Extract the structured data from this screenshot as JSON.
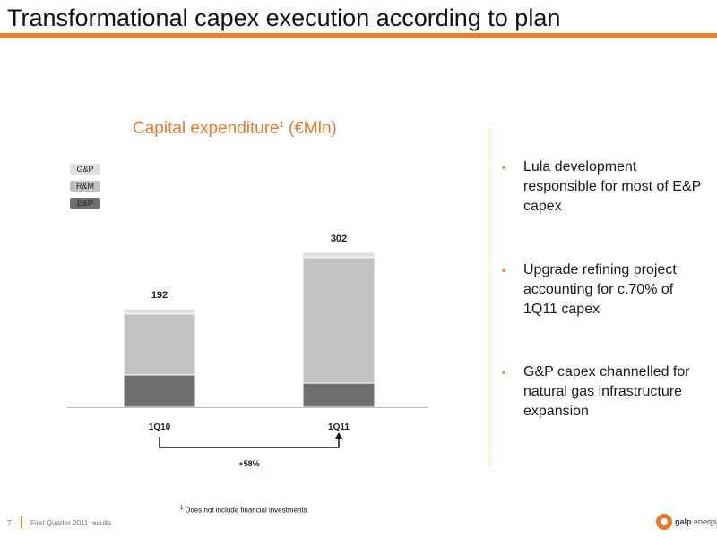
{
  "header": {
    "title": "Transformational capex execution according to plan"
  },
  "chart_data": {
    "type": "bar",
    "stacked": true,
    "title": "Capital expenditure",
    "title_superscript": "1",
    "title_unit": "(€Mln)",
    "categories": [
      "1Q10",
      "1Q11"
    ],
    "series": [
      {
        "name": "E&P",
        "values": [
          63,
          47
        ],
        "color": "#6f6f6f"
      },
      {
        "name": "R&M",
        "values": [
          119,
          245
        ],
        "color": "#c2c2c2"
      },
      {
        "name": "G&P",
        "values": [
          10,
          10
        ],
        "color": "#e1e1e1"
      }
    ],
    "totals": [
      "192",
      "302"
    ],
    "growth_label": "+58%",
    "ylim": [
      0,
      302
    ],
    "legend_position": "top-left",
    "grid": false
  },
  "bullets": [
    "Lula development responsible for most of E&P capex",
    "Upgrade refining project accounting for c.70% of 1Q11 capex",
    "G&P capex channelled for natural gas infrastructure expansion"
  ],
  "bullet_marker": "▪",
  "footnote": {
    "marker": "1",
    "text": " Does not include financial investments"
  },
  "footer": {
    "page": "7",
    "text": "First Quarter 2011 results",
    "logo_brand": "galp",
    "logo_suffix": "energia"
  },
  "colors": {
    "accent": "#ee7f2d",
    "ep": "#6f6f6f",
    "rm": "#c2c2c2",
    "gp": "#e1e1e1"
  }
}
